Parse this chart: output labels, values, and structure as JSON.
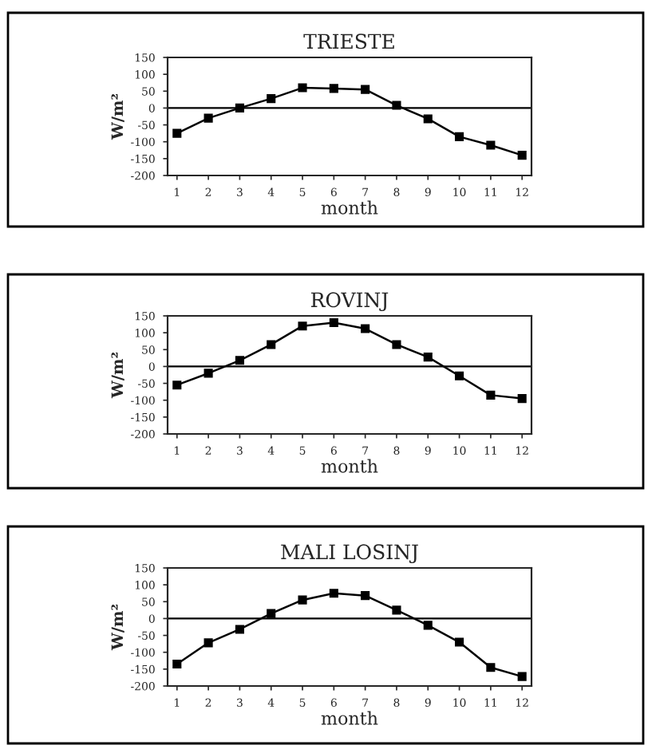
{
  "chart_data": [
    {
      "type": "line",
      "title": "TRIESTE",
      "xlabel": "month",
      "ylabel": "W/m²",
      "x": [
        1,
        2,
        3,
        4,
        5,
        6,
        7,
        8,
        9,
        10,
        11,
        12
      ],
      "series": [
        {
          "color": "#000000",
          "values": [
            -75,
            -30,
            0,
            28,
            60,
            58,
            55,
            8,
            -32,
            -85,
            -110,
            -140
          ]
        }
      ],
      "xlim": [
        0.7,
        12.3
      ],
      "xticks": [
        1,
        2,
        3,
        4,
        5,
        6,
        7,
        8,
        9,
        10,
        11,
        12
      ],
      "ylim": [
        -200,
        150
      ],
      "yticks": [
        -200,
        -150,
        -100,
        -50,
        0,
        50,
        100,
        150
      ],
      "ref_lines": [
        {
          "axis": "y",
          "value": 0,
          "color": "#000000"
        }
      ],
      "marker": "square",
      "line_style": "solid",
      "grid": false,
      "legend": false
    },
    {
      "type": "line",
      "title": "ROVINJ",
      "xlabel": "month",
      "ylabel": "W/m²",
      "x": [
        1,
        2,
        3,
        4,
        5,
        6,
        7,
        8,
        9,
        10,
        11,
        12
      ],
      "series": [
        {
          "color": "#000000",
          "values": [
            -55,
            -20,
            18,
            65,
            120,
            130,
            112,
            65,
            28,
            -28,
            -85,
            -95
          ]
        }
      ],
      "xlim": [
        0.7,
        12.3
      ],
      "xticks": [
        1,
        2,
        3,
        4,
        5,
        6,
        7,
        8,
        9,
        10,
        11,
        12
      ],
      "ylim": [
        -200,
        150
      ],
      "yticks": [
        -200,
        -150,
        -100,
        -50,
        0,
        50,
        100,
        150
      ],
      "ref_lines": [
        {
          "axis": "y",
          "value": 0,
          "color": "#000000"
        }
      ],
      "marker": "square",
      "line_style": "solid",
      "grid": false,
      "legend": false
    },
    {
      "type": "line",
      "title": "MALI LOSINJ",
      "xlabel": "month",
      "ylabel": "W/m²",
      "x": [
        1,
        2,
        3,
        4,
        5,
        6,
        7,
        8,
        9,
        10,
        11,
        12
      ],
      "series": [
        {
          "color": "#000000",
          "values": [
            -135,
            -72,
            -32,
            15,
            55,
            75,
            68,
            25,
            -20,
            -70,
            -145,
            -172
          ]
        }
      ],
      "xlim": [
        0.7,
        12.3
      ],
      "xticks": [
        1,
        2,
        3,
        4,
        5,
        6,
        7,
        8,
        9,
        10,
        11,
        12
      ],
      "ylim": [
        -200,
        150
      ],
      "yticks": [
        -200,
        -150,
        -100,
        -50,
        0,
        50,
        100,
        150
      ],
      "ref_lines": [
        {
          "axis": "y",
          "value": 0,
          "color": "#000000"
        }
      ],
      "marker": "square",
      "line_style": "solid",
      "grid": false,
      "legend": false
    }
  ]
}
